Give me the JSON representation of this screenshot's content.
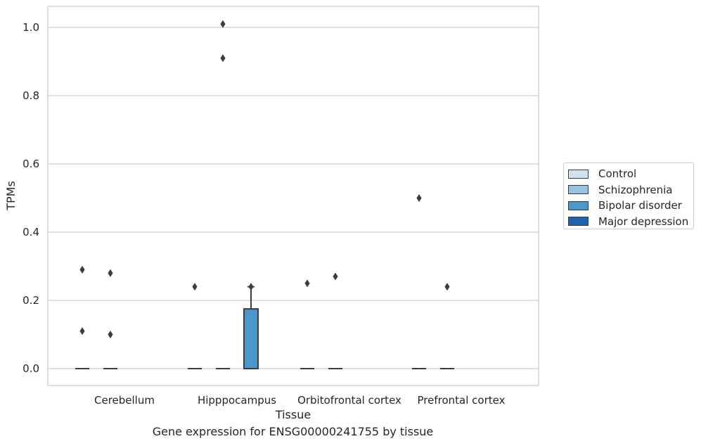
{
  "caption": "Gene expression for ENSG00000241755 by tissue",
  "chart_data": {
    "type": "box",
    "xlabel": "Tissue",
    "ylabel": "TPMs",
    "ylim": [
      -0.05,
      1.06
    ],
    "yticks": [
      0.0,
      0.2,
      0.4,
      0.6,
      0.8,
      1.0
    ],
    "ytick_labels": [
      "0.0",
      "0.2",
      "0.4",
      "0.6",
      "0.8",
      "1.0"
    ],
    "grid": "horizontal",
    "legend_placement": "right",
    "categories": [
      "Cerebellum",
      "Hipppocampus",
      "Orbitofrontal cortex",
      "Prefrontal cortex"
    ],
    "series": [
      {
        "name": "Control",
        "color": "#d0e1f2",
        "boxes": [
          {
            "category": "Cerebellum",
            "q1": 0,
            "median": 0,
            "q3": 0,
            "whisker_low": 0,
            "whisker_high": 0,
            "outliers": [
              0.29,
              0.11
            ]
          },
          {
            "category": "Hipppocampus",
            "q1": 0,
            "median": 0,
            "q3": 0,
            "whisker_low": 0,
            "whisker_high": 0,
            "outliers": [
              0.24
            ]
          },
          {
            "category": "Orbitofrontal cortex",
            "q1": 0,
            "median": 0,
            "q3": 0,
            "whisker_low": 0,
            "whisker_high": 0,
            "outliers": [
              0.25
            ]
          },
          {
            "category": "Prefrontal cortex",
            "q1": 0,
            "median": 0,
            "q3": 0,
            "whisker_low": 0,
            "whisker_high": 0,
            "outliers": [
              0.5
            ]
          }
        ]
      },
      {
        "name": "Schizophrenia",
        "color": "#94c4df",
        "boxes": [
          {
            "category": "Cerebellum",
            "q1": 0,
            "median": 0,
            "q3": 0,
            "whisker_low": 0,
            "whisker_high": 0,
            "outliers": [
              0.28,
              0.1
            ]
          },
          {
            "category": "Hipppocampus",
            "q1": 0,
            "median": 0,
            "q3": 0,
            "whisker_low": 0,
            "whisker_high": 0,
            "outliers": [
              1.01,
              0.91
            ]
          },
          {
            "category": "Orbitofrontal cortex",
            "q1": 0,
            "median": 0,
            "q3": 0,
            "whisker_low": 0,
            "whisker_high": 0,
            "outliers": [
              0.27
            ]
          },
          {
            "category": "Prefrontal cortex",
            "q1": 0,
            "median": 0,
            "q3": 0,
            "whisker_low": 0,
            "whisker_high": 0,
            "outliers": [
              0.24
            ]
          }
        ]
      },
      {
        "name": "Bipolar disorder",
        "color": "#4a98c9",
        "boxes": [
          {
            "category": "Hipppocampus",
            "q1": 0,
            "median": 0,
            "q3": 0.175,
            "whisker_low": 0,
            "whisker_high": 0.24,
            "outliers": [
              0.24
            ]
          }
        ]
      },
      {
        "name": "Major depression",
        "color": "#2163aa",
        "boxes": []
      }
    ]
  }
}
